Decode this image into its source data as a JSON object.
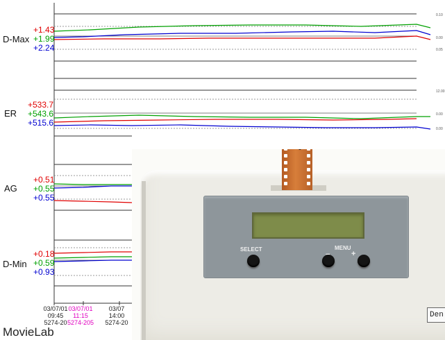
{
  "panels": [
    {
      "label": "D-Max",
      "values": [
        {
          "color": "red",
          "text": "+1.43"
        },
        {
          "color": "green",
          "text": "+1.99"
        },
        {
          "color": "blue",
          "text": "+2.24"
        }
      ]
    },
    {
      "label": "ER",
      "values": [
        {
          "color": "red",
          "text": "+533.7"
        },
        {
          "color": "green",
          "text": "+543.6"
        },
        {
          "color": "blue",
          "text": "+515.6"
        }
      ]
    },
    {
      "label": "AG",
      "values": [
        {
          "color": "red",
          "text": "+0.51"
        },
        {
          "color": "green",
          "text": "+0.55"
        },
        {
          "color": "blue",
          "text": "+0.55"
        }
      ]
    },
    {
      "label": "D-Min",
      "values": [
        {
          "color": "red",
          "text": "+0.18"
        },
        {
          "color": "green",
          "text": "+0.59"
        },
        {
          "color": "blue",
          "text": "+0.93"
        }
      ]
    }
  ],
  "scale_labels": [
    "0.10",
    "0.00",
    "0.05",
    "12.00",
    "0.00",
    "0.00"
  ],
  "x_ticks": [
    {
      "date": "03/07/01",
      "time": "09:45",
      "id": "5274-20",
      "color": "#222222"
    },
    {
      "date": "03/07/01",
      "time": "11:15",
      "id": "5274-205",
      "color": "#e000c0"
    },
    {
      "date": "03/07",
      "time": "14:00",
      "id": "5274-20",
      "color": "#222222"
    }
  ],
  "brand": "MovieLab",
  "device": {
    "select_label": "SELECT",
    "menu_label": "MENU",
    "minus_symbol": "−",
    "plus_symbol": "+",
    "tag_text": "Den"
  },
  "colors": {
    "red": "#e00000",
    "green": "#00a000",
    "blue": "#0000d0",
    "panel": "#8e969b",
    "lcd": "#7e8c4a",
    "film": "#c76c2e"
  }
}
